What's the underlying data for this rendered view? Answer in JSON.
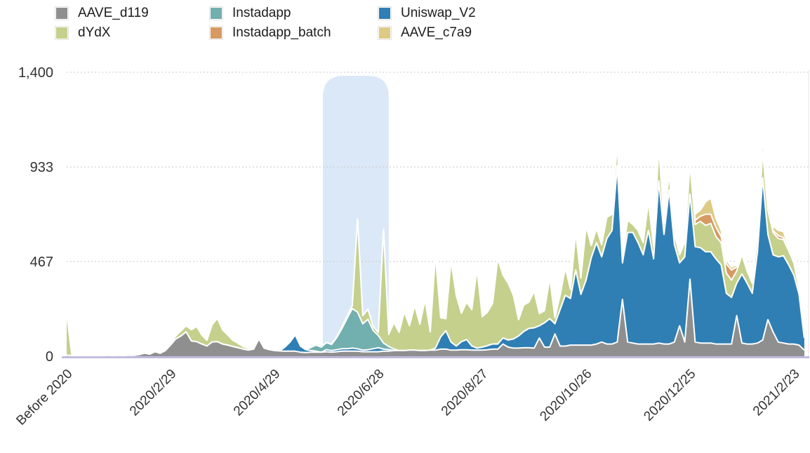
{
  "legend": {
    "items": [
      {
        "label": "AAVE_d119",
        "color": "#8f8f8f"
      },
      {
        "label": "dYdX",
        "color": "#c4d08c"
      },
      {
        "label": "Instadapp",
        "color": "#72afaf"
      },
      {
        "label": "Instadapp_batch",
        "color": "#d69a62"
      },
      {
        "label": "Uniswap_V2",
        "color": "#2f7fb4"
      },
      {
        "label": "AAVE_c7a9",
        "color": "#ddca85"
      }
    ]
  },
  "colors": {
    "baseline": "#b6b0da",
    "gridline": "#c8c8c8",
    "axis_text": "#333333",
    "plot_border": "#e4e4e4",
    "series_outline": "#ffffff"
  },
  "chart_data": {
    "type": "area",
    "stacked": true,
    "title": "",
    "xlabel": "",
    "ylabel": "",
    "ylim": [
      0,
      1400
    ],
    "grid": "dotted-horizontal",
    "legend_position": "top-left",
    "x_unit": "days after first point, 3-day resolution",
    "day_step": 3,
    "x_ticks": [
      {
        "day": 0,
        "label": "Before 2020"
      },
      {
        "day": 60,
        "label": "2020/2/29"
      },
      {
        "day": 120,
        "label": "2020/4/29"
      },
      {
        "day": 180,
        "label": "2020/6/28"
      },
      {
        "day": 240,
        "label": "2020/8/27"
      },
      {
        "day": 300,
        "label": "2020/10/26"
      },
      {
        "day": 360,
        "label": "2020/12/25"
      },
      {
        "day": 420,
        "label": "2021/2/23"
      }
    ],
    "y_ticks": [
      {
        "value": 0,
        "label": "0"
      },
      {
        "value": 467,
        "label": "467"
      },
      {
        "value": 933,
        "label": "933"
      },
      {
        "value": 1400,
        "label": "1,400"
      }
    ],
    "highlight_band": {
      "start_day": 148,
      "end_day": 186,
      "color": "#dbe8f7",
      "corner_radius": 30
    },
    "series": [
      {
        "name": "AAVE_d119",
        "color": "#8f8f8f",
        "values": [
          5,
          3,
          2,
          3,
          2,
          3,
          2,
          3,
          4,
          3,
          4,
          3,
          5,
          4,
          8,
          15,
          10,
          22,
          14,
          28,
          55,
          85,
          100,
          120,
          75,
          72,
          60,
          50,
          70,
          72,
          60,
          55,
          48,
          42,
          35,
          30,
          35,
          85,
          40,
          32,
          28,
          26,
          25,
          25,
          25,
          20,
          18,
          20,
          20,
          20,
          22,
          20,
          22,
          25,
          25,
          25,
          25,
          22,
          22,
          22,
          22,
          25,
          25,
          28,
          28,
          28,
          30,
          30,
          28,
          28,
          30,
          30,
          35,
          35,
          30,
          30,
          32,
          32,
          30,
          30,
          30,
          32,
          35,
          35,
          60,
          45,
          40,
          40,
          42,
          42,
          40,
          90,
          45,
          45,
          110,
          50,
          50,
          55,
          55,
          55,
          55,
          55,
          60,
          70,
          60,
          60,
          70,
          280,
          70,
          65,
          60,
          60,
          60,
          60,
          65,
          60,
          60,
          70,
          150,
          70,
          380,
          70,
          65,
          65,
          65,
          60,
          60,
          60,
          60,
          200,
          65,
          60,
          60,
          65,
          80,
          180,
          120,
          70,
          65,
          60,
          60,
          55,
          30
        ]
      },
      {
        "name": "Uniswap_V2",
        "color": "#2f7fb4",
        "values": [
          0,
          0,
          0,
          0,
          0,
          0,
          0,
          0,
          0,
          0,
          0,
          0,
          0,
          0,
          0,
          0,
          0,
          0,
          0,
          0,
          0,
          0,
          0,
          0,
          0,
          0,
          0,
          0,
          0,
          0,
          0,
          0,
          0,
          0,
          0,
          0,
          0,
          0,
          0,
          0,
          0,
          0,
          20,
          45,
          80,
          30,
          15,
          8,
          5,
          0,
          10,
          8,
          10,
          12,
          12,
          15,
          12,
          8,
          10,
          15,
          20,
          10,
          8,
          0,
          0,
          0,
          0,
          0,
          0,
          0,
          0,
          10,
          60,
          90,
          40,
          20,
          40,
          50,
          20,
          10,
          15,
          20,
          25,
          25,
          30,
          35,
          45,
          60,
          80,
          95,
          100,
          60,
          120,
          140,
          50,
          180,
          250,
          230,
          370,
          250,
          320,
          430,
          500,
          420,
          520,
          560,
          870,
          180,
          540,
          545,
          500,
          440,
          560,
          420,
          800,
          540,
          760,
          480,
          310,
          420,
          420,
          470,
          470,
          450,
          450,
          420,
          390,
          250,
          230,
          160,
          340,
          300,
          250,
          450,
          800,
          420,
          380,
          420,
          430,
          390,
          340,
          250,
          60
        ]
      },
      {
        "name": "Instadapp",
        "color": "#72afaf",
        "values": [
          0,
          0,
          0,
          0,
          0,
          0,
          0,
          0,
          0,
          0,
          0,
          0,
          0,
          0,
          0,
          0,
          0,
          0,
          0,
          0,
          0,
          0,
          0,
          0,
          0,
          0,
          0,
          0,
          0,
          0,
          0,
          0,
          0,
          0,
          0,
          0,
          0,
          0,
          0,
          0,
          0,
          0,
          0,
          0,
          0,
          0,
          0,
          15,
          30,
          25,
          35,
          30,
          60,
          100,
          150,
          195,
          180,
          130,
          150,
          90,
          60,
          30,
          15,
          8,
          0,
          0,
          0,
          0,
          0,
          0,
          0,
          0,
          0,
          0,
          0,
          0,
          0,
          0,
          0,
          0,
          0,
          0,
          0,
          0,
          0,
          0,
          0,
          0,
          0,
          0,
          0,
          0,
          0,
          0,
          0,
          0,
          0,
          0,
          0,
          0,
          0,
          0,
          0,
          0,
          0,
          0,
          0,
          0,
          0,
          0,
          0,
          0,
          0,
          0,
          0,
          0,
          0,
          0,
          0,
          0,
          0,
          0,
          0,
          0,
          0,
          0,
          0,
          0,
          0,
          0,
          0,
          0,
          0,
          0,
          0,
          0,
          0,
          0,
          0,
          0,
          0,
          0,
          0
        ]
      },
      {
        "name": "dYdX",
        "color": "#c4d08c",
        "values": [
          205,
          0,
          0,
          0,
          0,
          0,
          0,
          0,
          0,
          0,
          0,
          0,
          0,
          0,
          0,
          0,
          0,
          0,
          0,
          0,
          8,
          15,
          25,
          30,
          55,
          75,
          45,
          28,
          85,
          115,
          70,
          50,
          30,
          22,
          12,
          8,
          5,
          4,
          4,
          3,
          2,
          2,
          0,
          0,
          0,
          0,
          0,
          0,
          0,
          0,
          0,
          0,
          5,
          8,
          10,
          15,
          460,
          40,
          50,
          20,
          15,
          560,
          60,
          130,
          90,
          190,
          120,
          220,
          130,
          250,
          90,
          460,
          95,
          60,
          400,
          250,
          140,
          185,
          180,
          390,
          150,
          165,
          200,
          420,
          310,
          280,
          215,
          80,
          130,
          130,
          180,
          60,
          60,
          200,
          30,
          70,
          135,
          45,
          185,
          80,
          265,
          60,
          70,
          60,
          105,
          80,
          110,
          40,
          60,
          40,
          60,
          60,
          140,
          60,
          170,
          55,
          80,
          50,
          40,
          70,
          150,
          110,
          130,
          130,
          140,
          110,
          110,
          100,
          85,
          60,
          95,
          60,
          50,
          80,
          130,
          120,
          110,
          90,
          80,
          70,
          60,
          30,
          25
        ]
      },
      {
        "name": "Instadapp_batch",
        "color": "#d69a62",
        "values": [
          0,
          0,
          0,
          0,
          0,
          0,
          0,
          0,
          0,
          0,
          0,
          0,
          0,
          0,
          0,
          0,
          0,
          0,
          0,
          0,
          0,
          0,
          0,
          0,
          0,
          0,
          0,
          0,
          0,
          0,
          0,
          0,
          0,
          0,
          0,
          0,
          0,
          0,
          0,
          0,
          0,
          0,
          0,
          0,
          0,
          0,
          0,
          0,
          0,
          0,
          0,
          0,
          0,
          0,
          0,
          0,
          0,
          0,
          0,
          0,
          0,
          0,
          0,
          0,
          0,
          0,
          0,
          0,
          0,
          0,
          0,
          0,
          0,
          0,
          0,
          0,
          0,
          0,
          0,
          0,
          0,
          0,
          0,
          0,
          0,
          0,
          0,
          0,
          0,
          0,
          0,
          0,
          0,
          0,
          0,
          0,
          0,
          0,
          0,
          0,
          0,
          0,
          0,
          0,
          0,
          0,
          0,
          0,
          0,
          0,
          0,
          0,
          0,
          0,
          0,
          15,
          10,
          0,
          0,
          10,
          0,
          20,
          25,
          55,
          45,
          45,
          30,
          45,
          50,
          20,
          15,
          0,
          0,
          0,
          0,
          0,
          10,
          15,
          10,
          0,
          0,
          0,
          0
        ]
      },
      {
        "name": "AAVE_c7a9",
        "color": "#ddca85",
        "values": [
          0,
          0,
          0,
          0,
          0,
          0,
          0,
          0,
          0,
          0,
          0,
          0,
          0,
          0,
          0,
          0,
          0,
          0,
          0,
          0,
          0,
          0,
          0,
          0,
          0,
          0,
          0,
          0,
          0,
          0,
          0,
          0,
          0,
          0,
          0,
          0,
          0,
          0,
          0,
          0,
          0,
          0,
          0,
          0,
          0,
          0,
          0,
          0,
          0,
          0,
          0,
          0,
          0,
          0,
          0,
          0,
          0,
          0,
          0,
          0,
          0,
          0,
          0,
          0,
          0,
          0,
          0,
          0,
          0,
          0,
          0,
          0,
          0,
          0,
          0,
          0,
          0,
          0,
          0,
          0,
          0,
          0,
          0,
          0,
          0,
          0,
          0,
          0,
          0,
          0,
          0,
          0,
          0,
          0,
          0,
          0,
          0,
          0,
          0,
          0,
          0,
          0,
          0,
          0,
          0,
          0,
          10,
          0,
          0,
          0,
          0,
          0,
          0,
          0,
          15,
          25,
          25,
          0,
          0,
          15,
          35,
          30,
          30,
          60,
          80,
          45,
          30,
          20,
          15,
          10,
          15,
          10,
          10,
          20,
          70,
          40,
          20,
          25,
          30,
          15,
          10,
          0,
          0
        ]
      }
    ]
  }
}
